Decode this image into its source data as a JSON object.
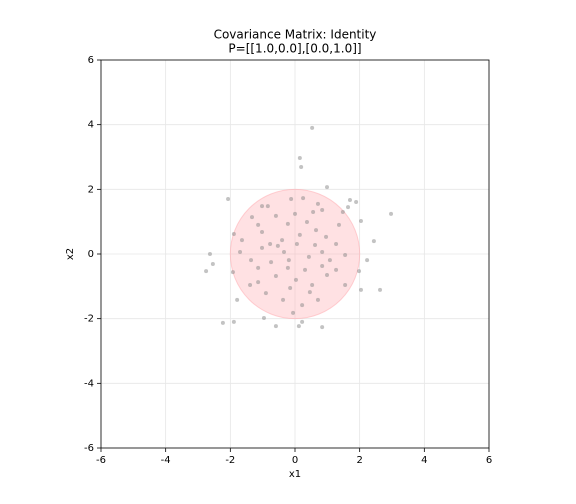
{
  "chart_data": {
    "type": "scatter",
    "title": "Covariance Matrix: Identity",
    "subtitle": "P=[[1.0,0.0],[0.0,1.0]]",
    "x_label": "x1",
    "y_label": "x2",
    "xlim": [
      -6,
      6
    ],
    "ylim": [
      -6,
      6
    ],
    "xticks": [
      -6,
      -4,
      -2,
      0,
      2,
      4,
      6
    ],
    "yticks": [
      -6,
      -4,
      -2,
      0,
      2,
      4,
      6
    ],
    "grid": true,
    "color": "#888888",
    "circle": {
      "center": [
        0,
        0
      ],
      "radius": 2,
      "color": "#ffb3b8"
    },
    "x": [
      0.53,
      0.15,
      0.19,
      0.99,
      -2.07,
      1.7,
      1.89,
      2.97,
      1.64,
      2.04,
      2.44,
      -2.63,
      -2.54,
      -2.75,
      2.23,
      1.98,
      2.04,
      2.63,
      -1.89,
      -2.23,
      0.12,
      0.84,
      -0.59,
      -0.96,
      0.22,
      -0.06,
      -1.89,
      1.36,
      1.27,
      1.55,
      -1.79,
      -1.14,
      -1.39,
      -1.92,
      -1.7,
      -1.02,
      -0.84,
      -0.12,
      0.25,
      0.71,
      0.56,
      0,
      -0.59,
      -1.14,
      -1.02,
      -0.4,
      0.15,
      0.65,
      0.96,
      1.27,
      0.84,
      0.43,
      -0.19,
      -0.74,
      -1.36,
      -0.59,
      0.03,
      0.53,
      0.99,
      0.71,
      0.22,
      -0.37,
      -0.9,
      -0.53,
      -1.02,
      0.31,
      0.62,
      -0.22,
      0.37,
      -0.34,
      0.06,
      -0.77,
      1.08,
      1.55,
      0.84,
      -0.22,
      -1.14,
      -1.64,
      -1.33,
      0.46,
      -0.15,
      1.48,
      0.84
    ],
    "y": [
      3.9,
      2.97,
      2.69,
      2.07,
      1.7,
      1.67,
      1.61,
      1.24,
      1.45,
      1.02,
      0.4,
      0.0,
      -0.31,
      -0.53,
      -0.19,
      -0.53,
      -1.11,
      -1.11,
      -2.1,
      -2.13,
      -2.23,
      -2.26,
      -2.23,
      -1.98,
      -2.1,
      -1.82,
      0.62,
      0.9,
      -0.49,
      -0.96,
      -1.42,
      -0.87,
      -0.96,
      -0.56,
      0.06,
      1.48,
      1.48,
      1.7,
      1.73,
      1.55,
      1.3,
      1.24,
      1.18,
      0.9,
      0.68,
      0.43,
      0.59,
      0.74,
      0.53,
      0.31,
      0.06,
      -0.09,
      -0.19,
      -0.25,
      -0.19,
      -0.68,
      -0.8,
      -0.96,
      -0.65,
      -1.42,
      -1.58,
      -1.42,
      -1.21,
      0.25,
      0.19,
      -0.49,
      0.28,
      0.93,
      0.99,
      0.06,
      0.31,
      0.31,
      -0.19,
      -0.03,
      -0.37,
      -0.43,
      -0.43,
      0.43,
      1.14,
      -1.18,
      -1.05,
      1.3,
      1.36
    ]
  }
}
